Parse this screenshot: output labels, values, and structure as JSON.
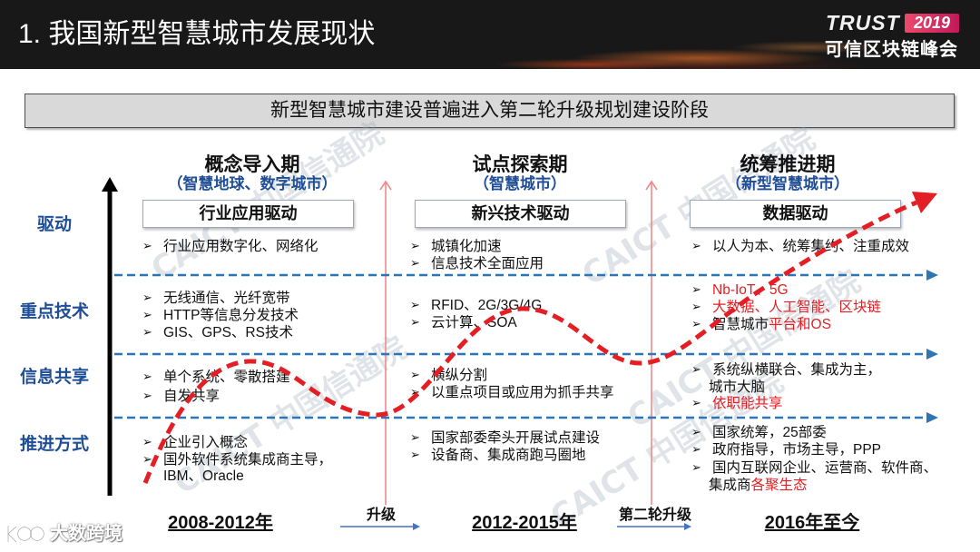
{
  "header": {
    "title": "1. 我国新型智慧城市发展现状",
    "logo": {
      "word": "TRUST",
      "year": "2019",
      "subtitle": "可信区块链峰会"
    }
  },
  "banner": "新型智慧城市建设普遍进入第二轮升级规划建设阶段",
  "row_labels": [
    "驱动",
    "重点技术",
    "信息共享",
    "推进方式"
  ],
  "phases": [
    {
      "name": "概念导入期",
      "subtitle": "（智慧地球、数字城市）",
      "driver": "行业应用驱动",
      "period": "2008-2012年",
      "drive": [
        "行业应用数字化、网络化"
      ],
      "tech": [
        "无线通信、光纤宽带",
        "HTTP等信息分发技术",
        "GIS、GPS、RS技术"
      ],
      "sharing": [
        "单个系统、零散搭建",
        "自发共享"
      ],
      "approach": [
        "企业引入概念",
        "国外软件系统集成商主导，",
        "IBM、Oracle"
      ]
    },
    {
      "name": "试点探索期",
      "subtitle": "（智慧城市）",
      "driver": "新兴技术驱动",
      "period": "2012-2015年",
      "drive": [
        "城镇化加速",
        "信息技术全面应用"
      ],
      "tech": [
        "RFID、2G/3G/4G",
        "云计算、SOA"
      ],
      "sharing": [
        "横纵分割",
        "以重点项目或应用为抓手共享"
      ],
      "approach": [
        "国家部委牵头开展试点建设",
        "设备商、集成商跑马圈地"
      ]
    },
    {
      "name": "统筹推进期",
      "subtitle": "（新型智慧城市）",
      "driver": "数据驱动",
      "period": "2016年至今",
      "drive": [
        "以人为本、统筹集约、注重成效"
      ],
      "tech": [
        {
          "highlight": "Nb-IoT、5G"
        },
        {
          "highlight": "大数据、人工智能、区块链"
        },
        {
          "normal": "智慧城市",
          "highlight": "平台和OS"
        }
      ],
      "sharing": [
        "系统纵横联合、集成为主，",
        "城市大脑",
        {
          "highlight": "依职能共享"
        }
      ],
      "approach": [
        "国家统筹，25部委",
        "政府指导，市场主导，PPP",
        "国内互联网企业、运营商、软件商、",
        {
          "normal": "集成商",
          "highlight": "各聚生态"
        }
      ]
    }
  ],
  "transitions": [
    "升级",
    "第二轮升级"
  ],
  "watermarks": {
    "org": "CAICT 中国信通院",
    "source": "大数跨境"
  },
  "colors": {
    "highlight": "#e31e24",
    "label_blue": "#1f4e96",
    "accent_blue": "#2e75b6",
    "curve_red": "#e31e24",
    "header_bg": "#181818"
  }
}
